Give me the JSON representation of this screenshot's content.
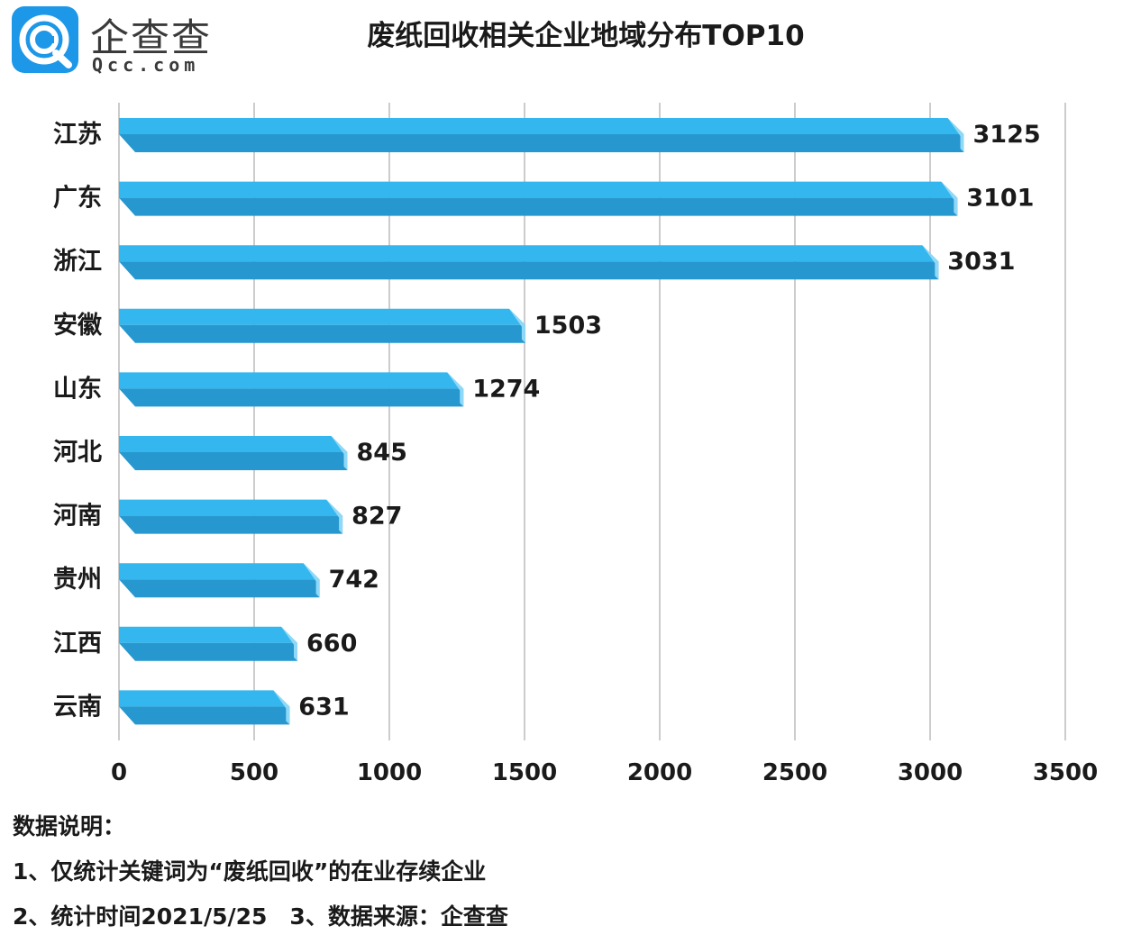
{
  "logo": {
    "name_cn": "企查查",
    "name_en": "Qcc.com",
    "brand_color": "#1d97e8"
  },
  "title": "废纸回收相关企业地域分布TOP10",
  "chart_data": {
    "type": "bar",
    "orientation": "horizontal",
    "title": "废纸回收相关企业地域分布TOP10",
    "categories": [
      "江苏",
      "广东",
      "浙江",
      "安徽",
      "山东",
      "河北",
      "河南",
      "贵州",
      "江西",
      "云南"
    ],
    "values": [
      3125,
      3101,
      3031,
      1503,
      1274,
      845,
      827,
      742,
      660,
      631
    ],
    "xlim": [
      0,
      3500
    ],
    "x_ticks": [
      0,
      500,
      1000,
      1500,
      2000,
      2500,
      3000,
      3500
    ],
    "grid": "vertical",
    "legend": "none",
    "data_labels": true,
    "colors": {
      "bar_top": "#33b7ee",
      "bar_front": "#2797cf",
      "bar_end": "#8fd8f7",
      "grid": "#cccccc"
    }
  },
  "notes": {
    "heading": "数据说明：",
    "line1": "1、仅统计关键词为“废纸回收”的在业存续企业",
    "line2": "2、统计时间2021/5/25　3、数据来源：企查查"
  }
}
